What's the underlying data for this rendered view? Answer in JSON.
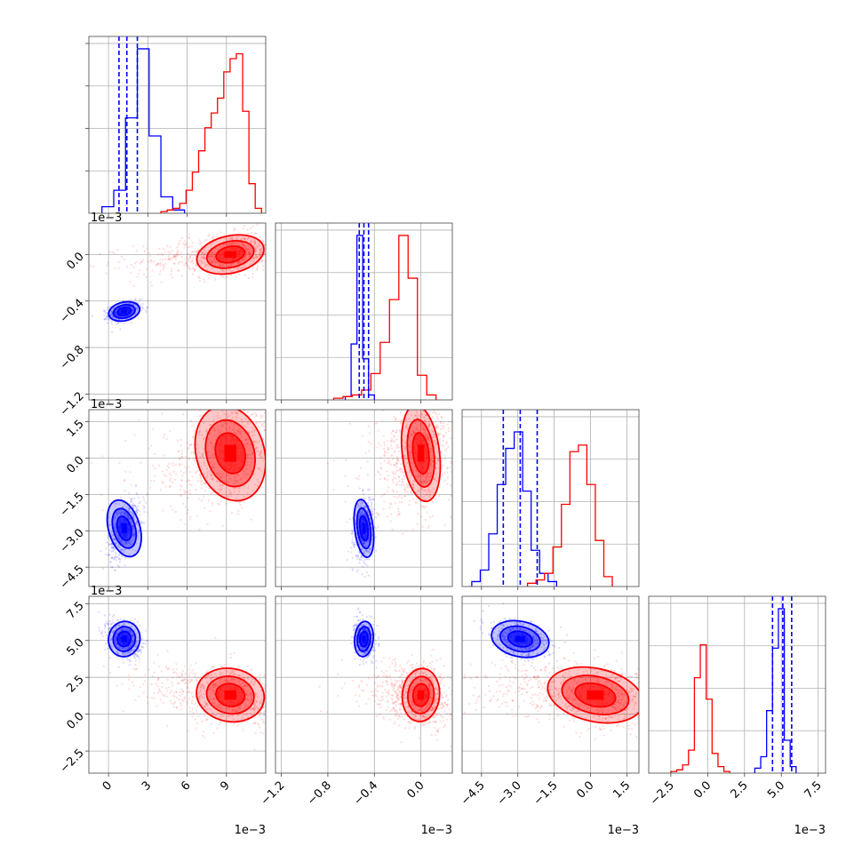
{
  "chart_data": {
    "type": "corner",
    "title": "",
    "parameters": [
      {
        "range": [
          -0.0015,
          0.012
        ],
        "ticks": [
          0,
          0.003,
          0.006,
          0.009
        ],
        "tick_labels": [
          "0",
          "3",
          "6",
          "9"
        ],
        "offset_label": "1e−3"
      },
      {
        "range": [
          -0.00125,
          0.00027
        ],
        "ticks": [
          -0.0012,
          -0.0008,
          -0.0004,
          0.0
        ],
        "tick_labels": [
          "−1.2",
          "−0.8",
          "−0.4",
          "0.0"
        ],
        "offset_label": "1e−3"
      },
      {
        "range": [
          -0.0053,
          0.002
        ],
        "ticks": [
          -0.0045,
          -0.003,
          -0.0015,
          0.0,
          0.0015
        ],
        "tick_labels": [
          "−4.5",
          "−3.0",
          "−1.5",
          "0.0",
          "1.5"
        ],
        "offset_label": "1e−3"
      },
      {
        "range": [
          -0.004,
          0.008
        ],
        "ticks": [
          -0.0025,
          0.0,
          0.0025,
          0.005,
          0.0075
        ],
        "tick_labels": [
          "−2.5",
          "0.0",
          "2.5",
          "5.0",
          "7.5"
        ],
        "offset_label": "1e−3"
      }
    ],
    "series": [
      {
        "color": "#0000ff",
        "quantiles": [
          [
            0.0008,
            0.0014,
            0.0022
          ],
          [
            -0.00053,
            -0.00049,
            -0.00045
          ],
          [
            -0.0036,
            -0.0029,
            -0.0022
          ],
          [
            0.0044,
            0.0051,
            0.0057
          ]
        ],
        "means": [
          0.0012,
          -0.00049,
          -0.0029,
          0.0051
        ],
        "sds": [
          0.0006,
          4e-05,
          0.0006,
          0.0006
        ],
        "hist": [
          [
            0.04,
            0.14,
            0.58,
            1.0,
            0.47,
            0.1,
            0.02
          ],
          [
            0.02,
            0.34,
            1.0,
            0.25,
            0.03
          ],
          [
            0.03,
            0.1,
            0.32,
            0.62,
            0.84,
            0.94,
            0.58,
            0.22,
            0.08,
            0.03
          ],
          [
            0.03,
            0.1,
            0.38,
            0.76,
            1.0,
            0.2,
            0.04
          ]
        ],
        "hist_x0": [
          -0.0005,
          -0.00065,
          -0.0049,
          0.0032
        ],
        "hist_dx": [
          0.0009,
          5e-05,
          0.00035,
          0.0004
        ]
      },
      {
        "color": "#ff0000",
        "quantiles": [],
        "means": [
          0.0093,
          0.0,
          0.0002,
          0.0013
        ],
        "sds": [
          0.0013,
          8e-05,
          0.001,
          0.0009
        ],
        "hist": [
          [
            0.01,
            0.02,
            0.03,
            0.06,
            0.14,
            0.25,
            0.38,
            0.52,
            0.61,
            0.7,
            0.86,
            0.94,
            0.97,
            0.62,
            0.18,
            0.03
          ],
          [
            0.01,
            0.02,
            0.03,
            0.06,
            0.16,
            0.35,
            0.61,
            1.0,
            0.74,
            0.15,
            0.03
          ],
          [
            0.02,
            0.04,
            0.08,
            0.24,
            0.5,
            0.82,
            0.86,
            0.62,
            0.28,
            0.06
          ],
          [
            0.01,
            0.02,
            0.05,
            0.14,
            0.58,
            0.78,
            0.45,
            0.12,
            0.04,
            0.01
          ]
        ],
        "hist_x0": [
          0.004,
          -0.00075,
          -0.0026,
          -0.0025
        ],
        "hist_dx": [
          0.00048,
          8e-05,
          0.00035,
          0.0004
        ]
      }
    ],
    "grid": true,
    "legend": "none"
  }
}
